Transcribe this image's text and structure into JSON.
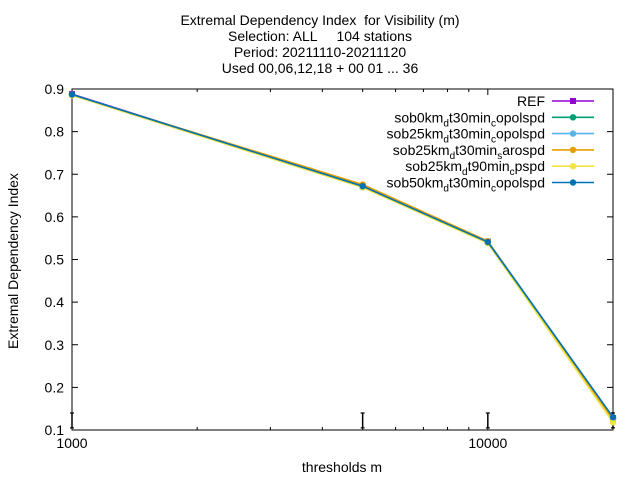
{
  "chart_data": {
    "type": "line",
    "title": "Extremal Dependency Index  for Visibility (m)",
    "subtitle_lines": [
      "Selection: ALL     104 stations",
      "Period: 20211110-20211120",
      "Used 00,06,12,18 + 00 01 ... 36"
    ],
    "xlabel": "thresholds m",
    "ylabel": "Extremal Dependency Index",
    "x_scale": "log",
    "xlim": [
      1000,
      20000
    ],
    "ylim": [
      0.1,
      0.9
    ],
    "x_ticks": [
      1000,
      10000
    ],
    "x_tick_labels": [
      "1000",
      "10000"
    ],
    "y_ticks": [
      0.1,
      0.2,
      0.3,
      0.4,
      0.5,
      0.6,
      0.7,
      0.8,
      0.9
    ],
    "y_tick_labels": [
      "0.1",
      "0.2",
      "0.3",
      "0.4",
      "0.5",
      "0.6",
      "0.7",
      "0.8",
      "0.9"
    ],
    "grid": false,
    "legend_position": "top-right",
    "x": [
      1000,
      5000,
      10000,
      20000
    ],
    "series": [
      {
        "name": "REF",
        "legend_parts": [
          [
            "REF",
            ""
          ]
        ],
        "color": "#9400d3",
        "marker": "square",
        "values": [
          0.888,
          0.672,
          0.542,
          0.128
        ]
      },
      {
        "name": "sob0km_dt30min_copolspd",
        "legend_parts": [
          [
            "sob0km",
            ""
          ],
          [
            "d",
            "sub"
          ],
          [
            "t30min",
            ""
          ],
          [
            "c",
            "sub"
          ],
          [
            "opolspd",
            ""
          ]
        ],
        "color": "#009e73",
        "marker": "circle",
        "values": [
          0.886,
          0.671,
          0.541,
          0.127
        ]
      },
      {
        "name": "sob25km_dt30min_copolspd",
        "legend_parts": [
          [
            "sob25km",
            ""
          ],
          [
            "d",
            "sub"
          ],
          [
            "t30min",
            ""
          ],
          [
            "c",
            "sub"
          ],
          [
            "opolspd",
            ""
          ]
        ],
        "color": "#56b4e9",
        "marker": "circle",
        "values": [
          0.887,
          0.673,
          0.543,
          0.129
        ]
      },
      {
        "name": "sob25km_dt30min_sarospd",
        "legend_parts": [
          [
            "sob25km",
            ""
          ],
          [
            "d",
            "sub"
          ],
          [
            "t30min",
            ""
          ],
          [
            "s",
            "sub"
          ],
          [
            "arospd",
            ""
          ]
        ],
        "color": "#e69f00",
        "marker": "circle",
        "values": [
          0.886,
          0.676,
          0.543,
          0.124
        ]
      },
      {
        "name": "sob25km_dt90min_cpspd",
        "legend_parts": [
          [
            "sob25km",
            ""
          ],
          [
            "d",
            "sub"
          ],
          [
            "t90min",
            ""
          ],
          [
            "c",
            "sub"
          ],
          [
            "pspd",
            ""
          ]
        ],
        "color": "#f0e442",
        "marker": "circle",
        "values": [
          0.885,
          0.669,
          0.538,
          0.118
        ]
      },
      {
        "name": "sob50km_dt30min_copolspd",
        "legend_parts": [
          [
            "sob50km",
            ""
          ],
          [
            "d",
            "sub"
          ],
          [
            "t30min",
            ""
          ],
          [
            "c",
            "sub"
          ],
          [
            "opolspd",
            ""
          ]
        ],
        "color": "#0072b2",
        "marker": "circle",
        "values": [
          0.887,
          0.672,
          0.541,
          0.13
        ]
      }
    ],
    "threshold_marks_x": [
      1000,
      5000,
      10000,
      20000
    ]
  }
}
